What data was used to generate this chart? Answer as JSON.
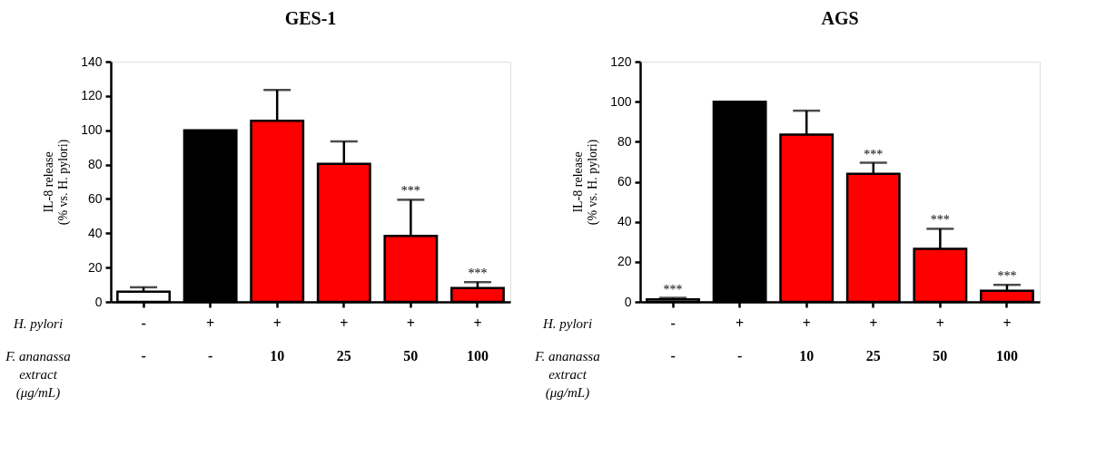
{
  "chart_data": [
    {
      "type": "bar",
      "title": "GES-1",
      "ylabel": "IL-8 release\n(% vs. H. pylori)",
      "categories": [
        null,
        null,
        null,
        null,
        null,
        null
      ],
      "values": [
        6,
        100,
        105.5,
        80.5,
        38.5,
        8
      ],
      "colors": [
        "#ffffff",
        "#000000",
        "#ff0000",
        "#ff0000",
        "#ff0000",
        "#ff0000"
      ],
      "errors": [
        [
          6,
          8.5
        ],
        null,
        [
          105.5,
          123.5
        ],
        [
          80.5,
          93.5
        ],
        [
          38.5,
          59.5
        ],
        [
          8,
          11.5
        ]
      ],
      "value_labels": [
        null,
        null,
        null,
        null,
        "***",
        "***"
      ],
      "ylim": [
        0,
        140
      ],
      "yticks": [
        0,
        20,
        40,
        60,
        80,
        100,
        120,
        140
      ],
      "grid": false,
      "tick_labels": "y",
      "annotations": [
        "H. pylori",
        "-",
        "+",
        "+",
        "+",
        "+",
        "+",
        "F. ananassa\nextract\n(μg/mL)",
        "-",
        "-",
        "10",
        "25",
        "50",
        "100"
      ]
    },
    {
      "type": "bar",
      "title": "AGS",
      "ylabel": "IL-8 release\n(% vs. H. pylori)",
      "categories": [
        null,
        null,
        null,
        null,
        null,
        null
      ],
      "values": [
        1.2,
        100,
        83.5,
        64,
        26.5,
        5.5
      ],
      "colors": [
        "#ffffff",
        "#000000",
        "#ff0000",
        "#ff0000",
        "#ff0000",
        "#ff0000"
      ],
      "errors": [
        [
          1.2,
          2
        ],
        null,
        [
          83.5,
          95.5
        ],
        [
          64,
          69.5
        ],
        [
          26.5,
          36.5
        ],
        [
          5.5,
          8.5
        ]
      ],
      "value_labels": [
        "***",
        null,
        null,
        "***",
        "***",
        "***"
      ],
      "ylim": [
        0,
        120
      ],
      "yticks": [
        0,
        20,
        40,
        60,
        80,
        100,
        120
      ],
      "grid": false,
      "tick_labels": "y",
      "annotations": [
        "H. pylori",
        "-",
        "+",
        "+",
        "+",
        "+",
        "+",
        "F. ananassa\nextract\n(μg/mL)",
        "-",
        "-",
        "10",
        "25",
        "50",
        "100"
      ]
    }
  ]
}
